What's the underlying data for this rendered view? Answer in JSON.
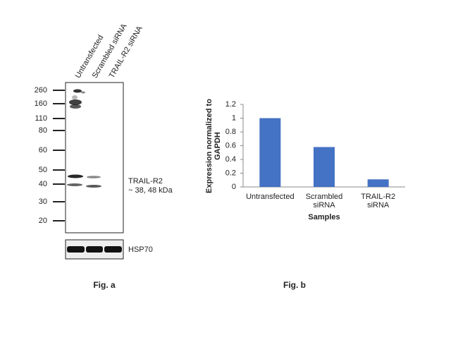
{
  "chart_data": {
    "type": "bar",
    "categories": [
      "Untransfected",
      "Scrambled siRNA",
      "TRAIL-R2 siRNA"
    ],
    "values": [
      1,
      0.58,
      0.11
    ],
    "color": "#4472c4",
    "ylim": [
      0,
      1.2
    ],
    "yticks": [
      0,
      0.2,
      0.4,
      0.6,
      0.8,
      1,
      1.2
    ],
    "xlabel": "Samples",
    "ylabel": "Expression normalized to GAPDH"
  },
  "blot": {
    "lanes": [
      "Untransfected",
      "Scrambled siRNA",
      "TRAIL-R2 siRNA"
    ],
    "markers": [
      "260",
      "160",
      "110",
      "80",
      "60",
      "50",
      "40",
      "30",
      "20"
    ],
    "target": "TRAIL-R2",
    "target_size": "~ 38, 48 kDa",
    "loading_control": "HSP70"
  },
  "captions": [
    "Fig. a",
    "Fig. b"
  ]
}
